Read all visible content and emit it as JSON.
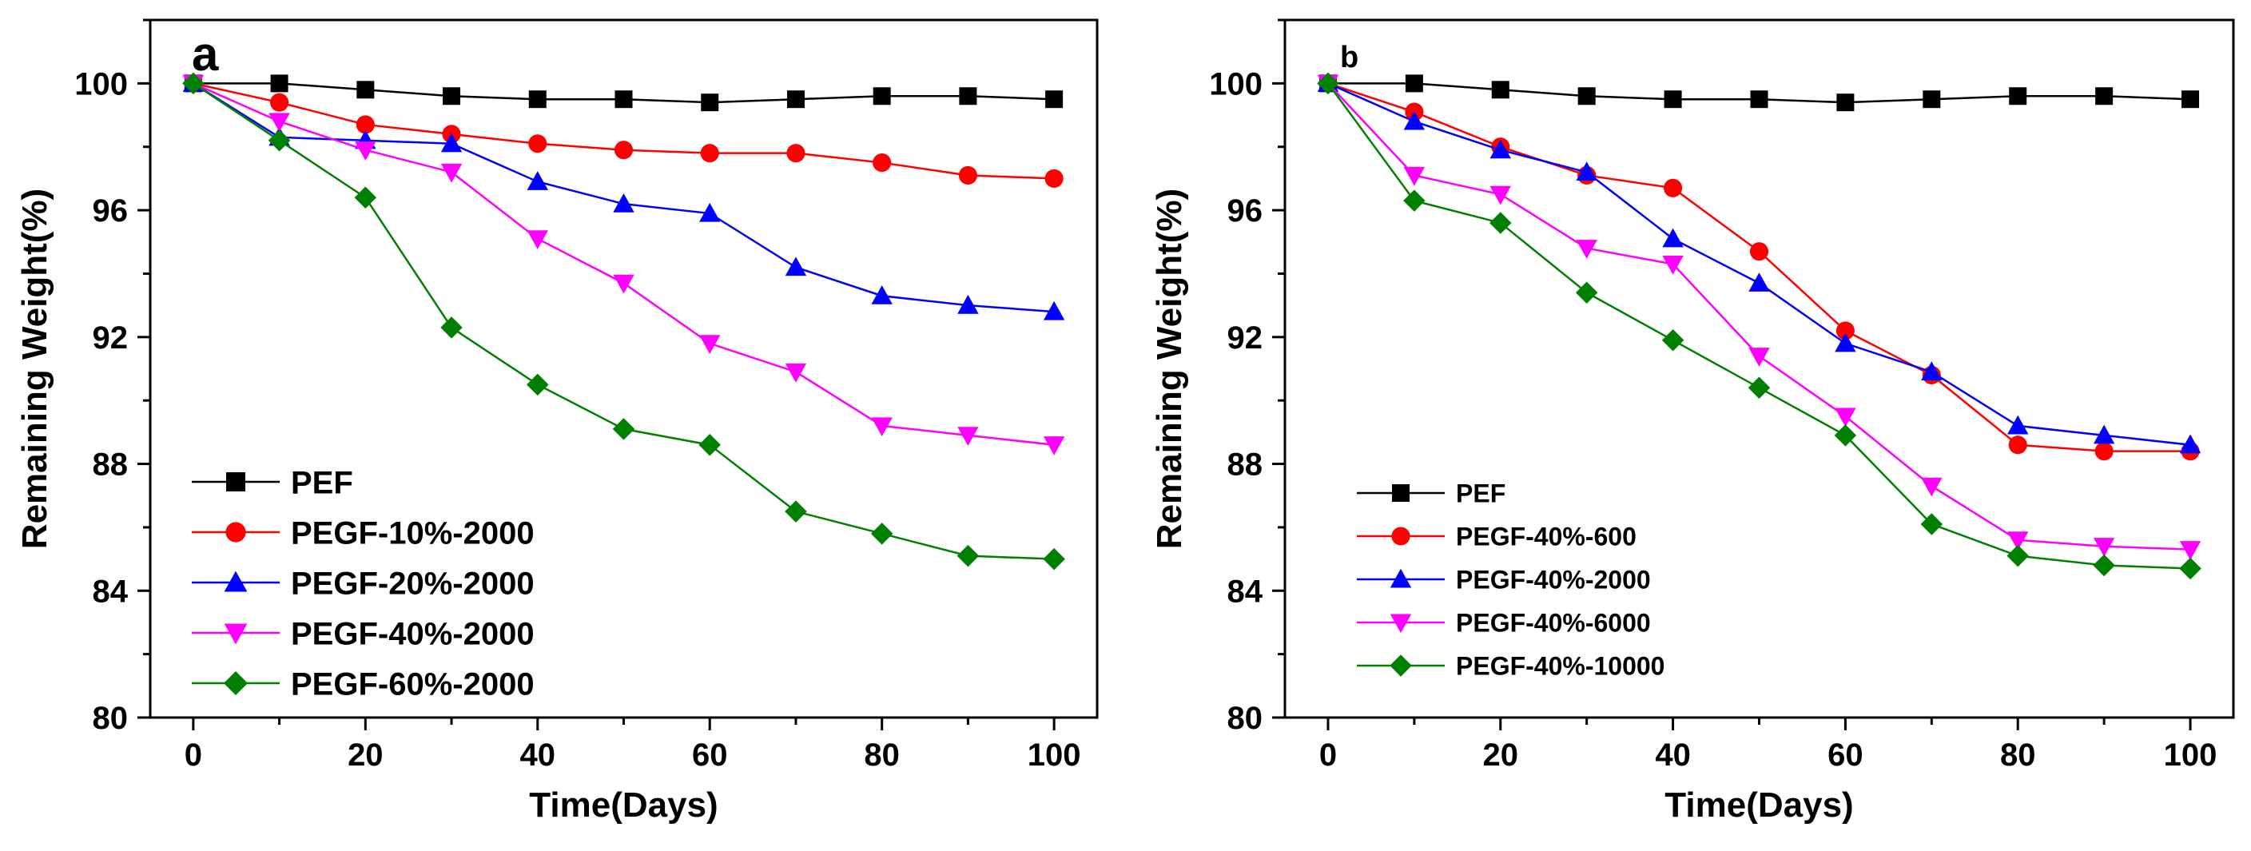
{
  "chart_data": [
    {
      "type": "line",
      "panel_label": "a",
      "title": "",
      "xlabel": "Time(Days)",
      "ylabel": "Remaining Weight(%)",
      "xlim": [
        -5,
        105
      ],
      "ylim": [
        80,
        102
      ],
      "xticks": [
        0,
        20,
        40,
        60,
        80,
        100
      ],
      "yticks": [
        80,
        84,
        88,
        92,
        96,
        100
      ],
      "grid": false,
      "legend_position": "lower-left",
      "x": [
        0,
        10,
        20,
        30,
        40,
        50,
        60,
        70,
        80,
        90,
        100
      ],
      "series": [
        {
          "name": "PEF",
          "color": "#000000",
          "marker": "square",
          "values": [
            100,
            100,
            99.8,
            99.6,
            99.5,
            99.5,
            99.4,
            99.5,
            99.6,
            99.6,
            99.5
          ]
        },
        {
          "name": "PEGF-10%-2000",
          "color": "#ff0000",
          "marker": "circle",
          "values": [
            100,
            99.4,
            98.7,
            98.4,
            98.1,
            97.9,
            97.8,
            97.8,
            97.5,
            97.1,
            97.0
          ]
        },
        {
          "name": "PEGF-20%-2000",
          "color": "#0000ff",
          "marker": "triangle-up",
          "values": [
            100,
            98.3,
            98.2,
            98.1,
            96.9,
            96.2,
            95.9,
            94.2,
            93.3,
            93.0,
            92.8
          ]
        },
        {
          "name": "PEGF-40%-2000",
          "color": "#ff00ff",
          "marker": "triangle-down",
          "values": [
            100,
            98.8,
            97.9,
            97.2,
            95.1,
            93.7,
            91.8,
            90.9,
            89.2,
            88.9,
            88.6
          ]
        },
        {
          "name": "PEGF-60%-2000",
          "color": "#008000",
          "marker": "diamond",
          "values": [
            100,
            98.2,
            96.4,
            92.3,
            90.5,
            89.1,
            88.6,
            86.5,
            85.8,
            85.1,
            85.0
          ]
        }
      ]
    },
    {
      "type": "line",
      "panel_label": "b",
      "title": "",
      "xlabel": "Time(Days)",
      "ylabel": "Remaining Weight(%)",
      "xlim": [
        -5,
        105
      ],
      "ylim": [
        80,
        102
      ],
      "xticks": [
        0,
        20,
        40,
        60,
        80,
        100
      ],
      "yticks": [
        80,
        84,
        88,
        92,
        96,
        100
      ],
      "grid": false,
      "legend_position": "lower-left",
      "x": [
        0,
        10,
        20,
        30,
        40,
        50,
        60,
        70,
        80,
        90,
        100
      ],
      "series": [
        {
          "name": "PEF",
          "color": "#000000",
          "marker": "square",
          "values": [
            100,
            100,
            99.8,
            99.6,
            99.5,
            99.5,
            99.4,
            99.5,
            99.6,
            99.6,
            99.5
          ]
        },
        {
          "name": "PEGF-40%-600",
          "color": "#ff0000",
          "marker": "circle",
          "values": [
            100,
            99.1,
            98.0,
            97.1,
            96.7,
            94.7,
            92.2,
            90.8,
            88.6,
            88.4,
            88.4
          ]
        },
        {
          "name": "PEGF-40%-2000",
          "color": "#0000ff",
          "marker": "triangle-up",
          "values": [
            100,
            98.8,
            97.9,
            97.2,
            95.1,
            93.7,
            91.8,
            90.9,
            89.2,
            88.9,
            88.6
          ]
        },
        {
          "name": "PEGF-40%-6000",
          "color": "#ff00ff",
          "marker": "triangle-down",
          "values": [
            100,
            97.1,
            96.5,
            94.8,
            94.3,
            91.4,
            89.5,
            87.3,
            85.6,
            85.4,
            85.3
          ]
        },
        {
          "name": "PEGF-40%-10000",
          "color": "#008000",
          "marker": "diamond",
          "values": [
            100,
            96.3,
            95.6,
            93.4,
            91.9,
            90.4,
            88.9,
            86.1,
            85.1,
            84.8,
            84.7
          ]
        }
      ]
    }
  ]
}
